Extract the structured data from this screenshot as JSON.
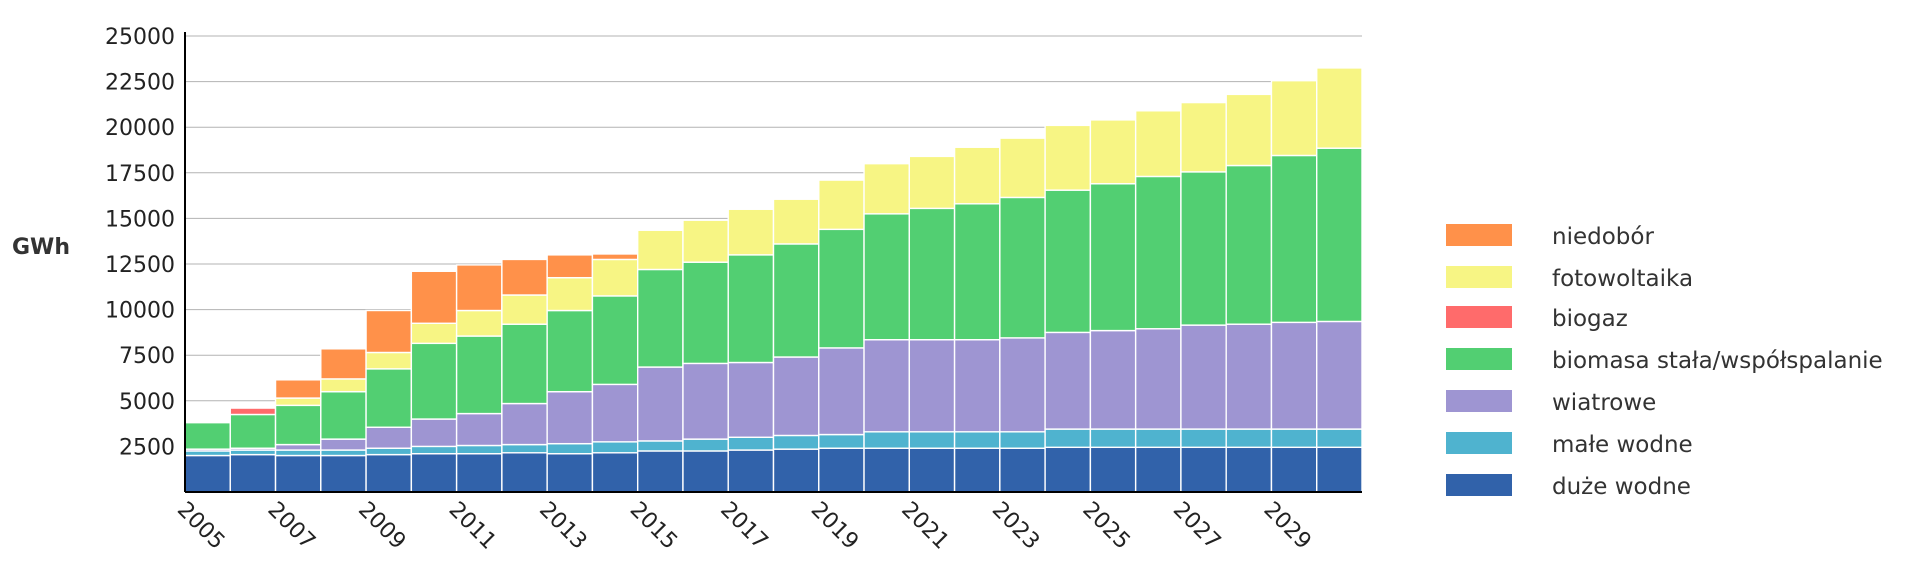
{
  "chart_data": {
    "type": "bar",
    "stacked": true,
    "title": "",
    "xlabel": "",
    "ylabel": "GWh",
    "ylim": [
      0,
      25000
    ],
    "yticks": [
      2500,
      5000,
      7500,
      10000,
      12500,
      15000,
      17500,
      20000,
      22500,
      25000
    ],
    "xtick_labels": [
      "2005",
      "2007",
      "2009",
      "2011",
      "2013",
      "2015",
      "2017",
      "2019",
      "2021",
      "2023",
      "2025",
      "2027",
      "2029"
    ],
    "legend_position": "right",
    "grid": true,
    "categories": [
      "2005",
      "2006",
      "2007",
      "2008",
      "2009",
      "2010",
      "2011",
      "2012",
      "2013",
      "2014",
      "2015",
      "2016",
      "2017",
      "2018",
      "2019",
      "2020",
      "2021",
      "2022",
      "2023",
      "2024",
      "2025",
      "2026",
      "2027",
      "2028",
      "2029",
      "2030"
    ],
    "series": [
      {
        "name": "duże wodne",
        "color": "#3162aa",
        "values": [
          2000,
          2050,
          2000,
          2000,
          2050,
          2100,
          2100,
          2150,
          2100,
          2150,
          2250,
          2250,
          2300,
          2350,
          2400,
          2400,
          2400,
          2400,
          2400,
          2450,
          2450,
          2450,
          2450,
          2450,
          2450,
          2450
        ]
      },
      {
        "name": "małe wodne",
        "color": "#4fb3cf",
        "values": [
          250,
          250,
          300,
          300,
          350,
          400,
          450,
          450,
          550,
          600,
          550,
          650,
          700,
          750,
          750,
          900,
          900,
          900,
          900,
          1000,
          1000,
          1000,
          1000,
          1000,
          1000,
          1000
        ]
      },
      {
        "name": "wiatrowe",
        "color": "#9e95d2",
        "values": [
          100,
          100,
          300,
          600,
          1150,
          1500,
          1750,
          2250,
          2850,
          3150,
          4050,
          4150,
          4100,
          4300,
          4750,
          5050,
          5050,
          5050,
          5150,
          5300,
          5400,
          5500,
          5700,
          5750,
          5850,
          5900
        ]
      },
      {
        "name": "biomasa stała/współspalanie",
        "color": "#52cf72",
        "values": [
          1450,
          1850,
          2150,
          2600,
          3200,
          4150,
          4250,
          4350,
          4450,
          4850,
          5350,
          5550,
          5900,
          6200,
          6500,
          6900,
          7200,
          7450,
          7700,
          7800,
          8050,
          8350,
          8400,
          8700,
          9150,
          9500
        ]
      },
      {
        "name": "biogaz",
        "color": "#ff6b6b",
        "values": [
          0,
          350,
          0,
          0,
          0,
          0,
          0,
          0,
          0,
          0,
          0,
          0,
          0,
          0,
          0,
          0,
          0,
          0,
          0,
          0,
          0,
          0,
          0,
          0,
          0,
          0
        ]
      },
      {
        "name": "fotowoltaika",
        "color": "#f7f584",
        "values": [
          0,
          0,
          400,
          700,
          900,
          1100,
          1400,
          1600,
          1800,
          2000,
          2150,
          2300,
          2500,
          2450,
          2700,
          2750,
          2850,
          3100,
          3250,
          3550,
          3500,
          3600,
          3800,
          3900,
          4100,
          4400
        ]
      },
      {
        "name": "niedobór",
        "color": "#ff914a",
        "values": [
          0,
          0,
          1000,
          1650,
          2300,
          2850,
          2500,
          1950,
          1250,
          300,
          0,
          0,
          0,
          0,
          0,
          0,
          0,
          0,
          0,
          0,
          0,
          0,
          0,
          0,
          0,
          0
        ]
      }
    ]
  }
}
